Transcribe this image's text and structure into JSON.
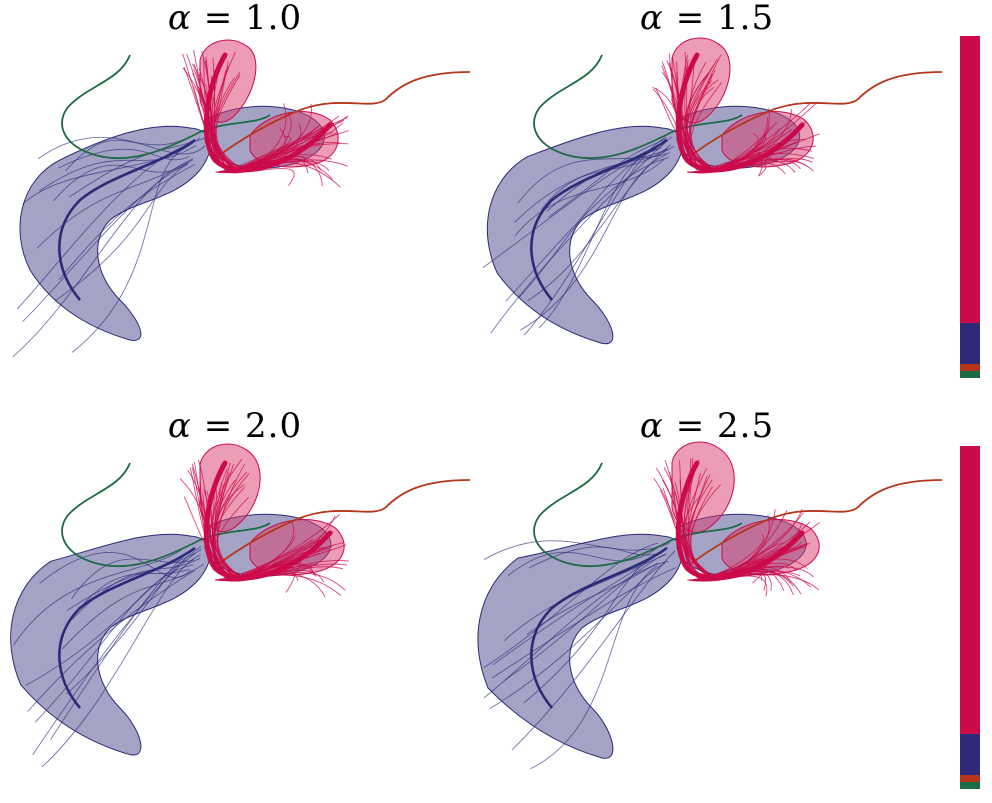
{
  "panels": [
    {
      "symbol": "α",
      "equals": " = ",
      "value": "1.0",
      "spread": 1.0
    },
    {
      "symbol": "α",
      "equals": " = ",
      "value": "1.5",
      "spread": 1.5
    },
    {
      "symbol": "α",
      "equals": " = ",
      "value": "2.0",
      "spread": 2.0
    },
    {
      "symbol": "α",
      "equals": " = ",
      "value": "2.5",
      "spread": 2.5
    }
  ],
  "colors": {
    "crimson": "#cc0a4a",
    "crimson_fill": "#d93b6c",
    "navy": "#2d2a7a",
    "navy_fill": "#5a5896",
    "brown": "#b5361b",
    "green": "#1d6b45"
  },
  "bar_segments": [
    {
      "name": "crimson",
      "fraction": 0.84,
      "color": "#cc0a4a"
    },
    {
      "name": "navy",
      "fraction": 0.12,
      "color": "#2d2a7a"
    },
    {
      "name": "brown",
      "fraction": 0.02,
      "color": "#b5361b"
    },
    {
      "name": "green",
      "fraction": 0.02,
      "color": "#1d6b45"
    }
  ]
}
